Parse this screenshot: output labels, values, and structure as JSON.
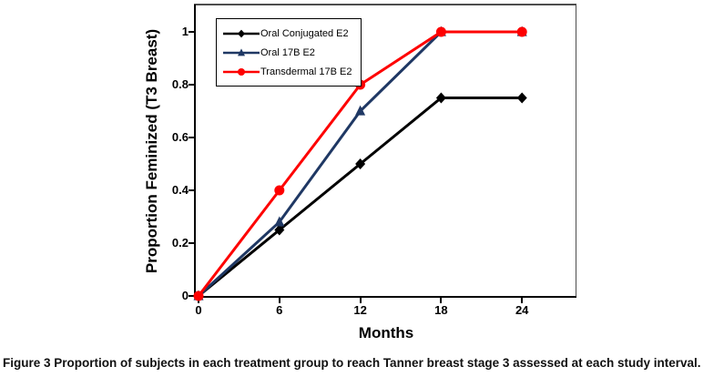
{
  "figure": {
    "caption_label": "Figure 3",
    "caption_text": " Proportion of subjects in each treatment group to reach Tanner breast stage 3 assessed at each study interval."
  },
  "chart_data": {
    "type": "line",
    "title": "",
    "xlabel": "Months",
    "ylabel": "Proportion Feminized (T3 Breast)",
    "x": [
      0,
      6,
      12,
      18,
      24
    ],
    "x_tick_labels": [
      "0",
      "6",
      "12",
      "18",
      "24"
    ],
    "y_tick_labels": [
      "0",
      "0.2",
      "0.4",
      "0.6",
      "0.8",
      "1"
    ],
    "xlim": [
      0,
      28
    ],
    "ylim": [
      0,
      1.1
    ],
    "grid": false,
    "legend_position": "top-left",
    "legend_entries": [
      "Oral Conjugated E2",
      "Oral 17B E2",
      "Transdermal 17B E2"
    ],
    "series": [
      {
        "name": "Oral Conjugated E2",
        "marker": "diamond",
        "color": "#000000",
        "values": [
          0,
          0.25,
          0.5,
          0.75,
          0.75
        ]
      },
      {
        "name": "Oral 17B E2",
        "marker": "triangle",
        "color": "#1f3864",
        "values": [
          0,
          0.28,
          0.7,
          1.0,
          1.0
        ]
      },
      {
        "name": "Transdermal 17B E2",
        "marker": "circle",
        "color": "#fe0000",
        "values": [
          0,
          0.4,
          0.8,
          1.0,
          1.0
        ]
      }
    ]
  }
}
